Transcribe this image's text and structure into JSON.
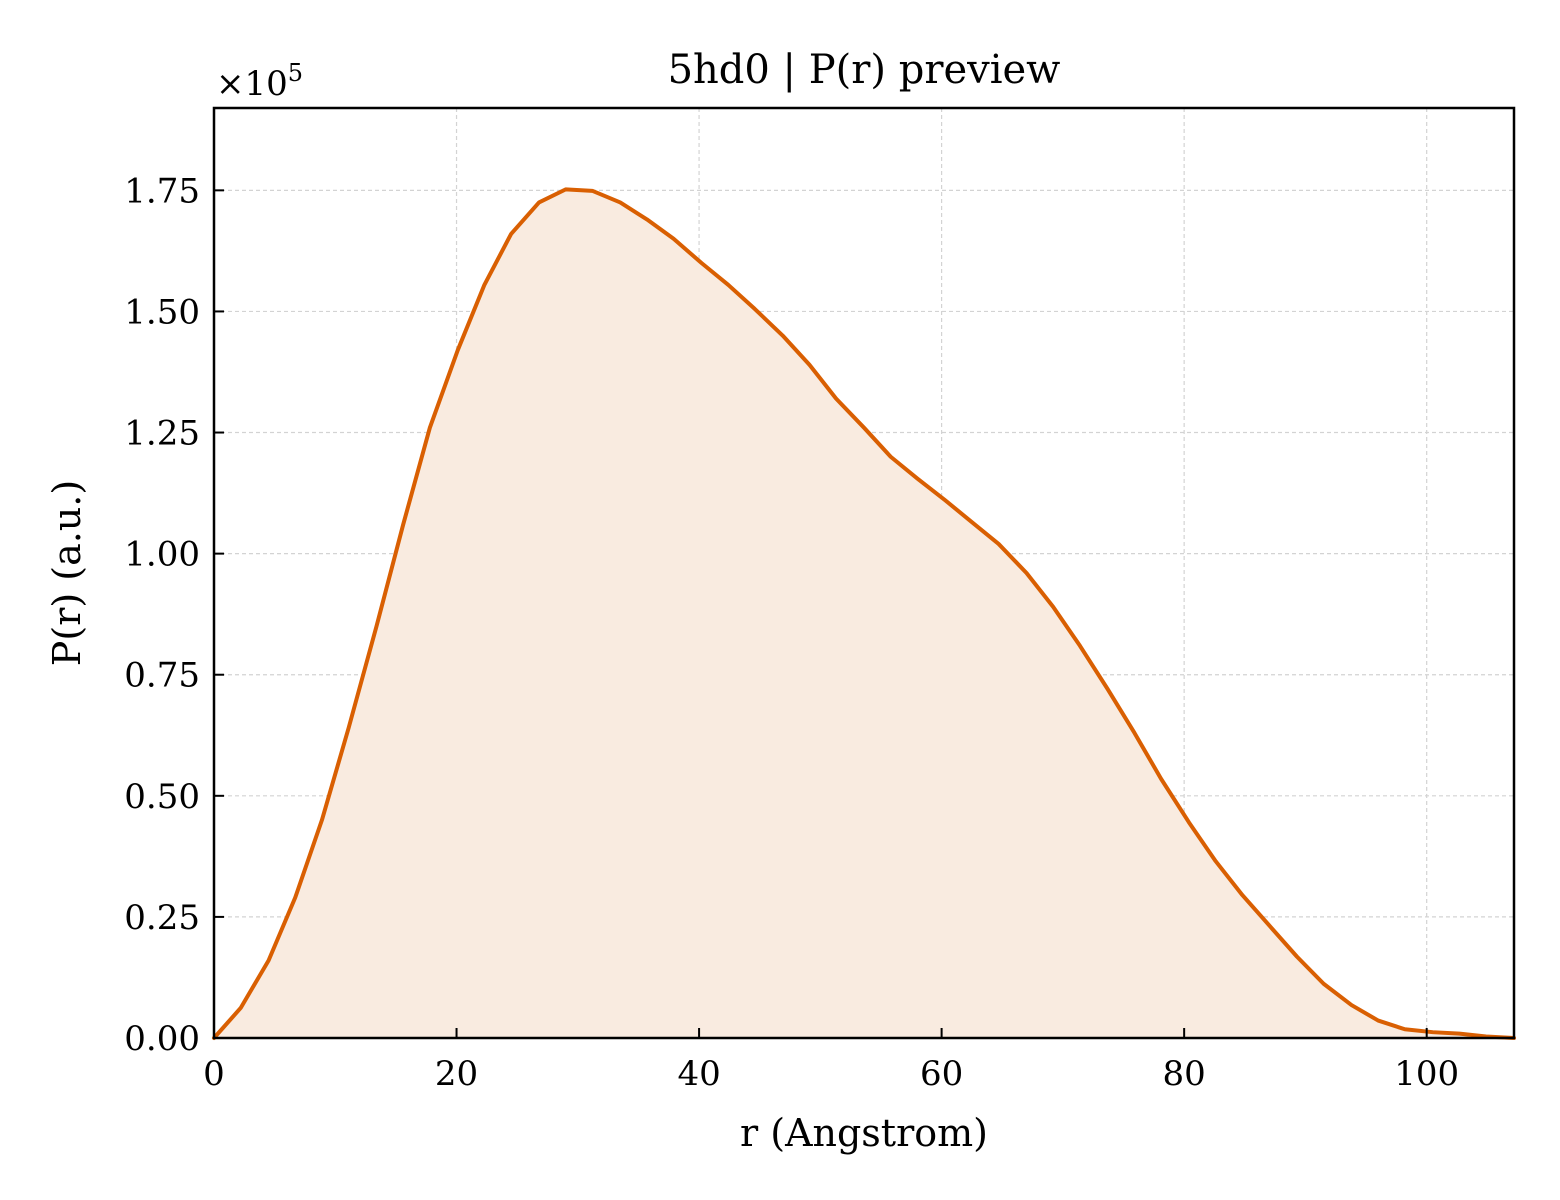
{
  "chart_data": {
    "type": "area",
    "title": "5hd0 | P(r) preview",
    "xlabel": "r (Angstrom)",
    "ylabel": "P(r) (a.u.)",
    "y_scale_label": "×10",
    "y_scale_exponent": "5",
    "xlim": [
      0,
      107.2
    ],
    "ylim": [
      0,
      1.92
    ],
    "x_ticks": [
      0,
      20,
      40,
      60,
      80,
      100
    ],
    "x_tick_labels": [
      "0",
      "20",
      "40",
      "60",
      "80",
      "100"
    ],
    "y_ticks": [
      0,
      0.25,
      0.5,
      0.75,
      1.0,
      1.25,
      1.5,
      1.75
    ],
    "y_tick_labels": [
      "0.00",
      "0.25",
      "0.50",
      "0.75",
      "1.00",
      "1.25",
      "1.50",
      "1.75"
    ],
    "grid": true,
    "colors": {
      "line": "#d95f02",
      "fill": "#f9ebe0",
      "grid": "#d3d3d3"
    },
    "series": [
      {
        "x": [
          0,
          2.2,
          4.5,
          6.7,
          8.9,
          11.1,
          13.4,
          15.6,
          17.8,
          20.1,
          22.3,
          24.5,
          26.8,
          29.0,
          31.2,
          33.5,
          35.7,
          37.9,
          40.2,
          42.4,
          44.6,
          46.9,
          49.1,
          51.3,
          53.6,
          55.8,
          58.0,
          60.3,
          62.5,
          64.7,
          67.0,
          69.2,
          71.4,
          73.7,
          75.9,
          78.1,
          80.4,
          82.6,
          84.8,
          87.1,
          89.3,
          91.5,
          93.8,
          96.0,
          98.2,
          100.5,
          102.7,
          104.9,
          107.2
        ],
        "values": [
          0.0,
          0.062,
          0.16,
          0.29,
          0.45,
          0.64,
          0.85,
          1.06,
          1.26,
          1.42,
          1.555,
          1.66,
          1.725,
          1.752,
          1.749,
          1.725,
          1.69,
          1.65,
          1.6,
          1.555,
          1.505,
          1.45,
          1.39,
          1.32,
          1.26,
          1.2,
          1.155,
          1.11,
          1.065,
          1.02,
          0.96,
          0.89,
          0.81,
          0.72,
          0.63,
          0.535,
          0.445,
          0.365,
          0.295,
          0.23,
          0.168,
          0.112,
          0.068,
          0.036,
          0.018,
          0.012,
          0.009,
          0.003,
          0.0
        ]
      }
    ]
  }
}
